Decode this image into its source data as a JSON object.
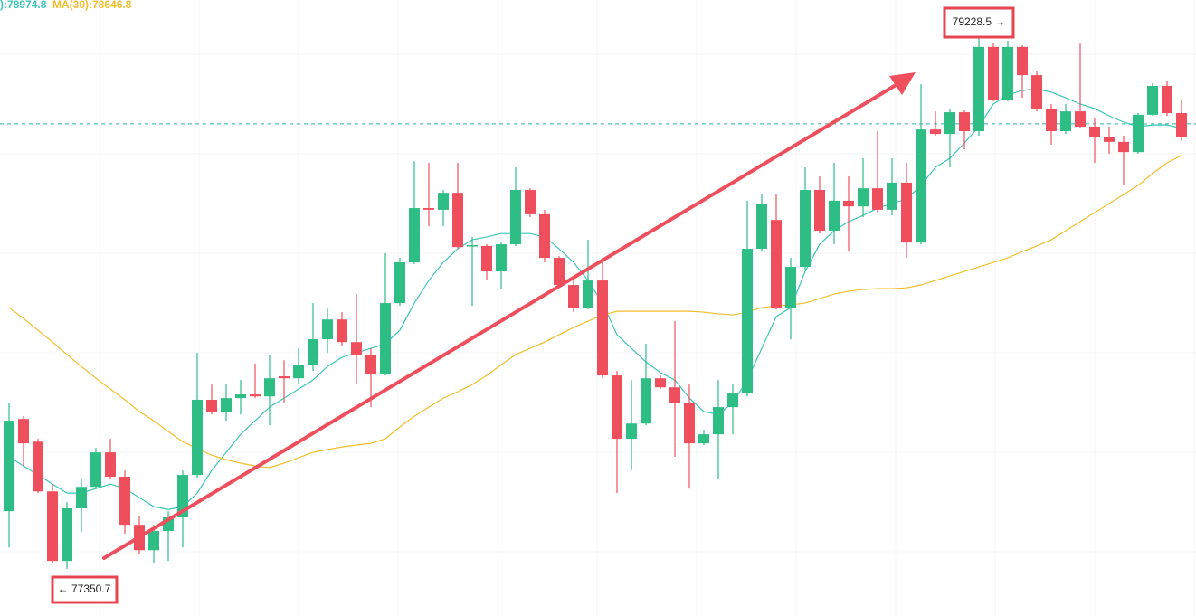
{
  "chart_data": {
    "type": "candlestick",
    "up_color": "#2ebd85",
    "down_color": "#ef4f5c",
    "open": [
      77555,
      77881,
      77801,
      77625,
      77379,
      77565,
      77641,
      77763,
      77677,
      77507,
      77417,
      77485,
      77533,
      77683,
      77949,
      77907,
      77955,
      77968,
      77961,
      78032,
      78025,
      78073,
      78163,
      78233,
      78153,
      78109,
      78041,
      78291,
      78435,
      78627,
      78621,
      78681,
      78493,
      78493,
      78403,
      78499,
      78691,
      78605,
      78451,
      78355,
      78275,
      78371,
      78035,
      77811,
      77865,
      78025,
      77993,
      77939,
      77795,
      77827,
      77923,
      77971,
      78483,
      78585,
      78275,
      78419,
      78691,
      78547,
      78653,
      78633,
      78697,
      78621,
      78717,
      78505,
      78905,
      78889,
      78966,
      78899,
      79197,
      79011,
      79197,
      79097,
      78979,
      78899,
      78969,
      78915,
      78877,
      78861,
      78825,
      78957,
      79059,
      78963
    ],
    "high": [
      77939,
      77891,
      77811,
      77651,
      77587,
      77667,
      77779,
      77811,
      77699,
      77539,
      77507,
      77555,
      77699,
      78115,
      78003,
      78003,
      78019,
      78077,
      78109,
      78089,
      78131,
      78291,
      78275,
      78259,
      78323,
      78131,
      78467,
      78451,
      78793,
      78787,
      78691,
      78787,
      78525,
      78499,
      78505,
      78771,
      78697,
      78621,
      78457,
      78371,
      78515,
      78451,
      78051,
      78019,
      78147,
      78035,
      78227,
      78003,
      77843,
      78019,
      78003,
      78653,
      78675,
      78675,
      78451,
      78771,
      78739,
      78787,
      78739,
      78803,
      78899,
      78803,
      78787,
      79065,
      78969,
      78979,
      78973,
      79228.5,
      79209,
      79219,
      79203,
      79113,
      78995,
      78995,
      79209,
      78947,
      78915,
      78883,
      78963,
      79069,
      79075,
      79011
    ],
    "low": [
      77427,
      77715,
      77619,
      77373,
      77350.7,
      77481,
      77635,
      77667,
      77475,
      77405,
      77373,
      77379,
      77427,
      77673,
      77897,
      77875,
      77897,
      77955,
      77859,
      77939,
      78003,
      78051,
      78115,
      78141,
      78003,
      77923,
      78035,
      78281,
      78429,
      78563,
      78563,
      78483,
      78281,
      78371,
      78339,
      78493,
      78595,
      78435,
      78345,
      78259,
      78269,
      78025,
      77619,
      77699,
      77859,
      77987,
      77747,
      77635,
      77789,
      77667,
      77827,
      77961,
      78473,
      78269,
      78163,
      78409,
      78537,
      78499,
      78473,
      78595,
      78611,
      78601,
      78451,
      78499,
      78883,
      78771,
      78835,
      78883,
      79005,
      79005,
      79017,
      78969,
      78851,
      78889,
      78909,
      78787,
      78819,
      78707,
      78819,
      78953,
      78953,
      78867
    ],
    "close": [
      77875,
      77795,
      77625,
      77379,
      77565,
      77641,
      77763,
      77677,
      77507,
      77417,
      77485,
      77533,
      77683,
      77949,
      77907,
      77955,
      77968,
      77961,
      78025,
      78025,
      78073,
      78163,
      78233,
      78153,
      78109,
      78041,
      78291,
      78435,
      78627,
      78621,
      78681,
      78489,
      78496,
      78403,
      78499,
      78691,
      78605,
      78451,
      78355,
      78275,
      78371,
      78035,
      77811,
      77865,
      78025,
      77993,
      77939,
      77795,
      77827,
      77923,
      77971,
      78483,
      78643,
      78275,
      78419,
      78691,
      78547,
      78653,
      78633,
      78697,
      78621,
      78717,
      78505,
      78905,
      78889,
      78966,
      78899,
      79197,
      79011,
      79197,
      79097,
      78979,
      78899,
      78969,
      78915,
      78877,
      78861,
      78825,
      78957,
      79059,
      78963,
      78877
    ],
    "indicators": [
      {
        "label": "):78974.8",
        "color": "#3cc6b6",
        "values": [
          77747,
          77715,
          77683,
          77651,
          77619,
          77619,
          77635,
          77651,
          77635,
          77603,
          77571,
          77561,
          77571,
          77619,
          77699,
          77763,
          77827,
          77875,
          77923,
          77955,
          77987,
          78019,
          78067,
          78099,
          78115,
          78131,
          78147,
          78195,
          78291,
          78371,
          78435,
          78483,
          78515,
          78525,
          78537,
          78537,
          78537,
          78525,
          78483,
          78435,
          78371,
          78291,
          78179,
          78131,
          78083,
          78045,
          78019,
          77955,
          77907,
          77897,
          77939,
          78019,
          78131,
          78243,
          78275,
          78403,
          78499,
          78547,
          78579,
          78601,
          78627,
          78643,
          78659,
          78707,
          78771,
          78803,
          78857,
          78915,
          78995,
          79027,
          79043,
          79049,
          79037,
          79017,
          78995,
          78979,
          78953,
          78931,
          78915,
          78921,
          78921,
          78909
        ]
      },
      {
        "label": "MA(30):78646.8",
        "color": "#f0be2c",
        "values": [
          78275,
          78237,
          78195,
          78153,
          78109,
          78067,
          78025,
          77987,
          77949,
          77907,
          77875,
          77837,
          77801,
          77776,
          77753,
          77737,
          77725,
          77715,
          77709,
          77725,
          77744,
          77763,
          77773,
          77782,
          77789,
          77795,
          77811,
          77853,
          77891,
          77923,
          77955,
          77977,
          78003,
          78035,
          78073,
          78109,
          78131,
          78153,
          78179,
          78205,
          78227,
          78249,
          78262,
          78262,
          78262,
          78262,
          78262,
          78262,
          78259,
          78253,
          78249,
          78259,
          78275,
          78281,
          78285,
          78291,
          78307,
          78323,
          78333,
          78339,
          78342,
          78342,
          78345,
          78355,
          78371,
          78387,
          78403,
          78419,
          78435,
          78451,
          78473,
          78493,
          78515,
          78547,
          78579,
          78611,
          78643,
          78675,
          78707,
          78749,
          78787,
          78813
        ]
      }
    ],
    "last_price": 78925,
    "annotations": [
      {
        "text": "79228.5 →"
      },
      {
        "text": "← 77350.7"
      }
    ]
  }
}
